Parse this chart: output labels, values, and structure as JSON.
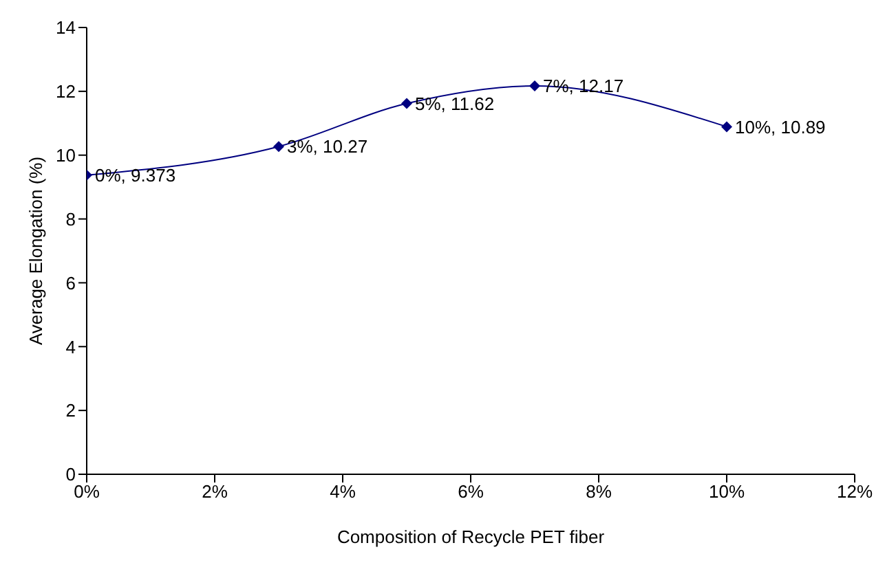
{
  "chart_data": {
    "type": "line",
    "xlabel": "Composition of Recycle PET fiber",
    "ylabel": "Average Elongation (%)",
    "x": [
      0,
      3,
      5,
      7,
      10
    ],
    "series": [
      {
        "color": "#000080",
        "values": [
          9.373,
          10.27,
          11.62,
          12.17,
          10.89
        ],
        "value_labels": [
          "0%, 9.373",
          "3%, 10.27",
          "5%, 11.62",
          "7%, 12.17",
          "10%, 10.89"
        ]
      }
    ],
    "xlim": [
      0,
      12
    ],
    "xticks": [
      {
        "value": 0,
        "label": "0%"
      },
      {
        "value": 2,
        "label": "2%"
      },
      {
        "value": 4,
        "label": "4%"
      },
      {
        "value": 6,
        "label": "6%"
      },
      {
        "value": 8,
        "label": "8%"
      },
      {
        "value": 10,
        "label": "10%"
      },
      {
        "value": 12,
        "label": "12%"
      }
    ],
    "ylim": [
      0,
      14
    ],
    "yticks": [
      0,
      2,
      4,
      6,
      8,
      10,
      12,
      14
    ],
    "marker": "diamond",
    "line_style": "solid",
    "grid": false,
    "legend": false
  }
}
